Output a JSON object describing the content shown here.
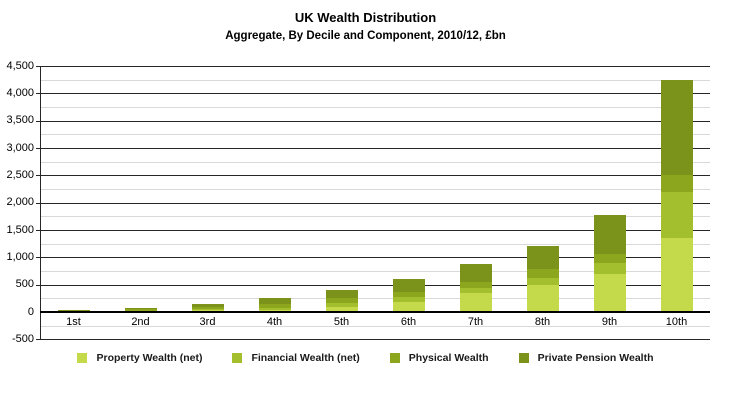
{
  "chart_data": {
    "type": "bar",
    "stacked": true,
    "title": "UK Wealth Distribution",
    "subtitle": "Aggregate, By Decile and Component, 2010/12, £bn",
    "xlabel": "",
    "ylabel": "",
    "categories": [
      "1st",
      "2nd",
      "3rd",
      "4th",
      "5th",
      "6th",
      "7th",
      "8th",
      "9th",
      "10th"
    ],
    "series": [
      {
        "name": "Property Wealth (net)",
        "color": "#c5da4b",
        "values": [
          5,
          15,
          35,
          45,
          95,
          190,
          340,
          500,
          690,
          1355
        ]
      },
      {
        "name": "Financial Wealth (net)",
        "color": "#a3bf2d",
        "values": [
          5,
          10,
          15,
          30,
          75,
          90,
          90,
          130,
          200,
          845
        ]
      },
      {
        "name": "Physical Wealth",
        "color": "#8ca61e",
        "values": [
          25,
          30,
          45,
          80,
          80,
          90,
          120,
          155,
          165,
          300
        ]
      },
      {
        "name": "Private Pension Wealth",
        "color": "#7b921b",
        "values": [
          10,
          15,
          55,
          105,
          150,
          230,
          325,
          425,
          720,
          1750
        ]
      }
    ],
    "totals": [
      45,
      70,
      150,
      260,
      400,
      600,
      875,
      1210,
      1775,
      4250
    ],
    "ylim": [
      -500,
      4500
    ],
    "ytick_step": 500,
    "yminor_step": 250,
    "y_tick_labels": [
      "-500",
      "0",
      "500",
      "1,000",
      "1,500",
      "2,000",
      "2,500",
      "3,000",
      "3,500",
      "4,000",
      "4,500"
    ],
    "grid": true,
    "legend_position": "bottom",
    "colors": {
      "major_gridline": "#262626",
      "minor_gridline": "#d9d9d9",
      "axis": "#000000",
      "text": "#000000"
    }
  }
}
